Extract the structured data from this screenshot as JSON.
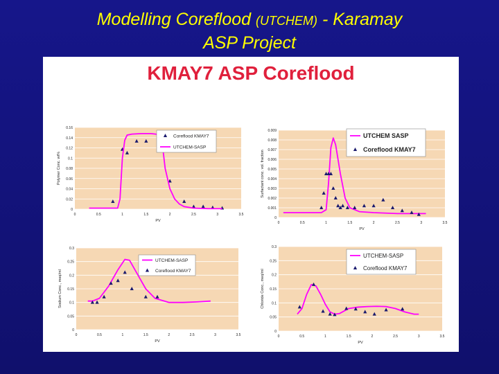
{
  "slide": {
    "title_main": "Modelling Coreflood",
    "title_paren": "(UTCHEM)",
    "title_tail": "- Karamay",
    "title_line2": "ASP Project"
  },
  "panel": {
    "title": "KMAY7 ASP Coreflood"
  },
  "colors": {
    "background": "#13137a",
    "title_text": "#ffff00",
    "panel_title": "#e0203c",
    "plot_bg": "#f6d8b4",
    "sim_line": "#ff00ff",
    "exp_marker": "#1a1a6e"
  },
  "chart_data": [
    {
      "id": "polymer",
      "type": "line",
      "ylabel": "Polymer Conc. wt%",
      "xlabel": "PV",
      "xlim": [
        0,
        3.5
      ],
      "ylim": [
        0,
        0.16
      ],
      "xticks": [
        "0",
        "0.5",
        "1",
        "1.5",
        "2",
        "2.5",
        "3",
        "3.5"
      ],
      "yticks": [
        "0",
        "0.02",
        "0.04",
        "0.06",
        "0.08",
        "0.1",
        "0.12",
        "0.14",
        "0.16"
      ],
      "series": [
        {
          "name": "Coreflood KMAY7",
          "kind": "marker",
          "x": [
            0.8,
            1.0,
            1.1,
            1.3,
            1.5,
            1.8,
            2.0,
            2.3,
            2.5,
            2.7,
            2.9,
            3.1
          ],
          "y": [
            0.015,
            0.117,
            0.11,
            0.133,
            0.133,
            0.12,
            0.055,
            0.015,
            0.005,
            0.005,
            0.003,
            0.002
          ]
        },
        {
          "name": "UTCHEM-SASP",
          "kind": "line",
          "x": [
            0.3,
            0.8,
            0.9,
            0.95,
            1.0,
            1.05,
            1.1,
            1.2,
            1.4,
            1.6,
            1.7,
            1.8,
            1.85,
            1.9,
            2.0,
            2.1,
            2.2,
            2.3,
            2.5,
            2.8,
            3.1
          ],
          "y": [
            0.002,
            0.002,
            0.002,
            0.02,
            0.1,
            0.135,
            0.145,
            0.147,
            0.148,
            0.148,
            0.147,
            0.145,
            0.12,
            0.08,
            0.04,
            0.02,
            0.01,
            0.005,
            0.002,
            0.001,
            0.001
          ]
        }
      ],
      "legend": "top-right"
    },
    {
      "id": "surfactant",
      "type": "line",
      "ylabel": "Surfactant conc. vol. fraction",
      "xlabel": "PV",
      "xlim": [
        0,
        3.5
      ],
      "ylim": [
        0,
        0.009
      ],
      "xticks": [
        "0",
        "0.5",
        "1",
        "1.5",
        "2",
        "2.5",
        "3",
        "3.5"
      ],
      "yticks": [
        "0",
        "0.001",
        "0.002",
        "0.003",
        "0.004",
        "0.005",
        "0.006",
        "0.007",
        "0.008",
        "0.009"
      ],
      "series": [
        {
          "name": "UTCHEM SASP",
          "kind": "line",
          "x": [
            0.1,
            0.9,
            1.0,
            1.05,
            1.1,
            1.15,
            1.2,
            1.3,
            1.4,
            1.5,
            1.7,
            2.0,
            2.5,
            3.1
          ],
          "y": [
            0.0005,
            0.0005,
            0.0008,
            0.0035,
            0.0072,
            0.0082,
            0.0075,
            0.0045,
            0.002,
            0.001,
            0.0006,
            0.0005,
            0.0004,
            0.0004
          ]
        },
        {
          "name": "Coreflood KMAY7",
          "kind": "marker",
          "x": [
            0.9,
            0.95,
            1.0,
            1.05,
            1.1,
            1.15,
            1.2,
            1.25,
            1.3,
            1.35,
            1.45,
            1.6,
            1.8,
            2.0,
            2.2,
            2.4,
            2.6,
            2.8,
            2.95
          ],
          "y": [
            0.001,
            0.0025,
            0.0045,
            0.0045,
            0.0045,
            0.003,
            0.002,
            0.0012,
            0.001,
            0.0012,
            0.001,
            0.001,
            0.0012,
            0.0012,
            0.0018,
            0.001,
            0.0007,
            0.0005,
            0.0003
          ]
        }
      ],
      "legend": "top-right"
    },
    {
      "id": "sodium",
      "type": "line",
      "ylabel": "Sodium Conc., meq/ml",
      "xlabel": "PV",
      "xlim": [
        0,
        3.5
      ],
      "ylim": [
        0,
        0.3
      ],
      "xticks": [
        "0",
        "0.5",
        "1",
        "1.5",
        "2",
        "2.5",
        "3",
        "3.5"
      ],
      "yticks": [
        "0",
        "0.05",
        "0.1",
        "0.15",
        "0.2",
        "0.25",
        "0.3"
      ],
      "series": [
        {
          "name": "UTCHEM-SASP",
          "kind": "line",
          "x": [
            0.25,
            0.35,
            0.5,
            0.7,
            0.9,
            1.05,
            1.15,
            1.3,
            1.5,
            1.7,
            2.0,
            2.3,
            2.6,
            2.9
          ],
          "y": [
            0.105,
            0.105,
            0.115,
            0.16,
            0.22,
            0.258,
            0.255,
            0.21,
            0.15,
            0.115,
            0.1,
            0.1,
            0.102,
            0.105
          ]
        },
        {
          "name": "Coreflood KMAY7",
          "kind": "marker",
          "x": [
            0.35,
            0.45,
            0.6,
            0.75,
            0.9,
            1.05,
            1.2,
            1.5,
            1.75
          ],
          "y": [
            0.1,
            0.1,
            0.12,
            0.17,
            0.18,
            0.21,
            0.15,
            0.12,
            0.12
          ]
        }
      ],
      "legend": "top-right"
    },
    {
      "id": "chloride",
      "type": "line",
      "ylabel": "Chloride Conc., meq/ml",
      "xlabel": "PV",
      "xlim": [
        0,
        3.5
      ],
      "ylim": [
        0,
        0.3
      ],
      "xticks": [
        "0",
        "0.5",
        "1",
        "1.5",
        "2",
        "2.5",
        "3",
        "3.5"
      ],
      "yticks": [
        "0",
        "0.05",
        "0.1",
        "0.15",
        "0.2",
        "0.25",
        "0.3"
      ],
      "series": [
        {
          "name": "UTCHEM-SASP",
          "kind": "line",
          "x": [
            0.4,
            0.5,
            0.6,
            0.7,
            0.8,
            0.9,
            1.0,
            1.1,
            1.2,
            1.3,
            1.5,
            1.7,
            1.9,
            2.1,
            2.3,
            2.5,
            2.7,
            2.9,
            3.0
          ],
          "y": [
            0.06,
            0.08,
            0.13,
            0.165,
            0.16,
            0.13,
            0.095,
            0.068,
            0.06,
            0.062,
            0.08,
            0.085,
            0.087,
            0.088,
            0.087,
            0.08,
            0.068,
            0.06,
            0.06
          ]
        },
        {
          "name": "Coreflood KMAY7",
          "kind": "marker",
          "x": [
            0.45,
            0.75,
            0.95,
            1.1,
            1.2,
            1.45,
            1.65,
            1.85,
            2.05,
            2.3,
            2.65
          ],
          "y": [
            0.085,
            0.165,
            0.07,
            0.06,
            0.058,
            0.08,
            0.078,
            0.068,
            0.06,
            0.075,
            0.078
          ]
        }
      ],
      "legend": "top-right"
    }
  ]
}
